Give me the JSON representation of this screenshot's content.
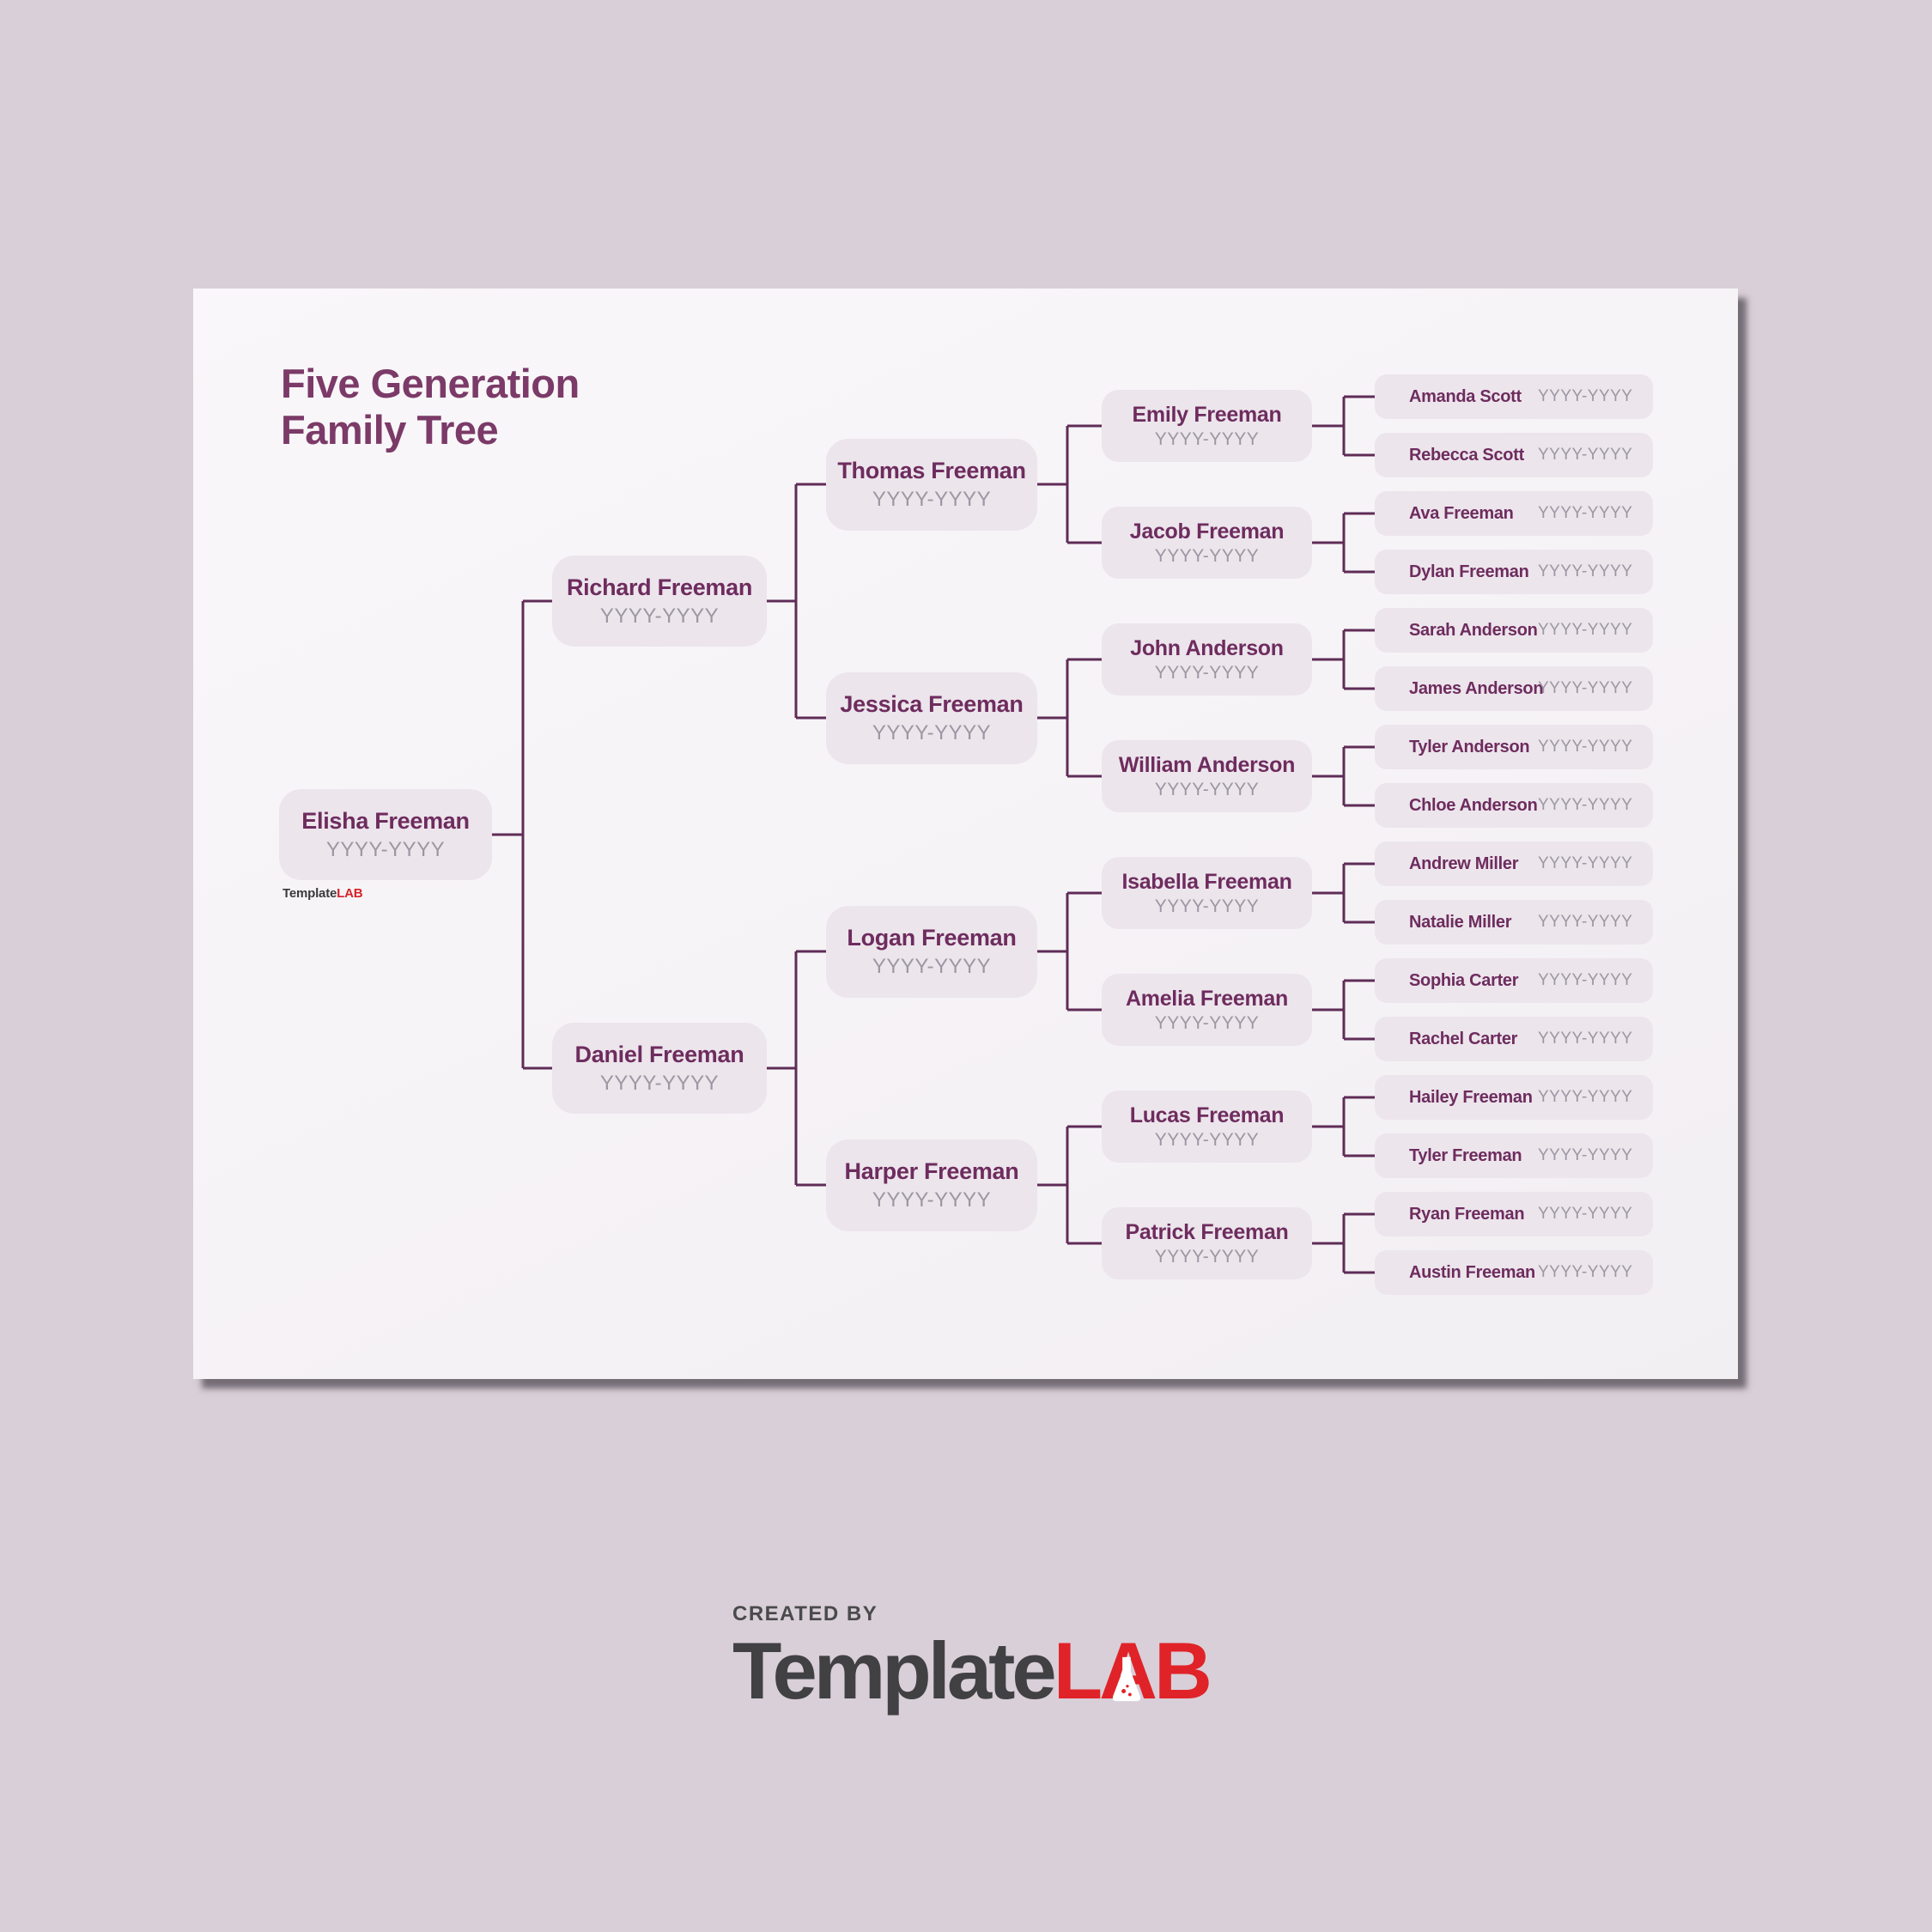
{
  "title": {
    "line1": "Five Generation",
    "line2": "Family Tree"
  },
  "watermark": {
    "part1": "Template",
    "part2": "LAB"
  },
  "footer": {
    "created_by": "CREATED BY",
    "brand_part1": "Template",
    "brand_l": "L",
    "brand_a": "A",
    "brand_b": "B"
  },
  "colors": {
    "accent_title": "#7b3a68",
    "connector_line": "#5f2c57",
    "box_fill": "#ece5ec",
    "name_text": "#6e2c5e",
    "years_text": "#9c97a2",
    "brand_red": "#e02328",
    "brand_gray": "#414144",
    "page_background": "#d9cfd8",
    "paper_background": "#f6f3f6"
  },
  "tree": {
    "generations": [
      {
        "level": 1,
        "members": [
          {
            "name": "Elisha Freeman",
            "years": "YYYY-YYYY"
          }
        ]
      },
      {
        "level": 2,
        "members": [
          {
            "name": "Richard Freeman",
            "years": "YYYY-YYYY"
          },
          {
            "name": "Daniel Freeman",
            "years": "YYYY-YYYY"
          }
        ]
      },
      {
        "level": 3,
        "members": [
          {
            "name": "Thomas Freeman",
            "years": "YYYY-YYYY"
          },
          {
            "name": "Jessica Freeman",
            "years": "YYYY-YYYY"
          },
          {
            "name": "Logan Freeman",
            "years": "YYYY-YYYY"
          },
          {
            "name": "Harper Freeman",
            "years": "YYYY-YYYY"
          }
        ]
      },
      {
        "level": 4,
        "members": [
          {
            "name": "Emily Freeman",
            "years": "YYYY-YYYY"
          },
          {
            "name": "Jacob Freeman",
            "years": "YYYY-YYYY"
          },
          {
            "name": "John Anderson",
            "years": "YYYY-YYYY"
          },
          {
            "name": "William Anderson",
            "years": "YYYY-YYYY"
          },
          {
            "name": "Isabella Freeman",
            "years": "YYYY-YYYY"
          },
          {
            "name": "Amelia Freeman",
            "years": "YYYY-YYYY"
          },
          {
            "name": "Lucas Freeman",
            "years": "YYYY-YYYY"
          },
          {
            "name": "Patrick Freeman",
            "years": "YYYY-YYYY"
          }
        ]
      },
      {
        "level": 5,
        "members": [
          {
            "name": "Amanda Scott",
            "years": "YYYY-YYYY"
          },
          {
            "name": "Rebecca Scott",
            "years": "YYYY-YYYY"
          },
          {
            "name": "Ava Freeman",
            "years": "YYYY-YYYY"
          },
          {
            "name": "Dylan Freeman",
            "years": "YYYY-YYYY"
          },
          {
            "name": "Sarah Anderson",
            "years": "YYYY-YYYY"
          },
          {
            "name": "James Anderson",
            "years": "YYYY-YYYY"
          },
          {
            "name": "Tyler Anderson",
            "years": "YYYY-YYYY"
          },
          {
            "name": "Chloe Anderson",
            "years": "YYYY-YYYY"
          },
          {
            "name": "Andrew Miller",
            "years": "YYYY-YYYY"
          },
          {
            "name": "Natalie Miller",
            "years": "YYYY-YYYY"
          },
          {
            "name": "Sophia Carter",
            "years": "YYYY-YYYY"
          },
          {
            "name": "Rachel Carter",
            "years": "YYYY-YYYY"
          },
          {
            "name": "Hailey Freeman",
            "years": "YYYY-YYYY"
          },
          {
            "name": "Tyler Freeman",
            "years": "YYYY-YYYY"
          },
          {
            "name": "Ryan Freeman",
            "years": "YYYY-YYYY"
          },
          {
            "name": "Austin Freeman",
            "years": "YYYY-YYYY"
          }
        ]
      }
    ]
  }
}
